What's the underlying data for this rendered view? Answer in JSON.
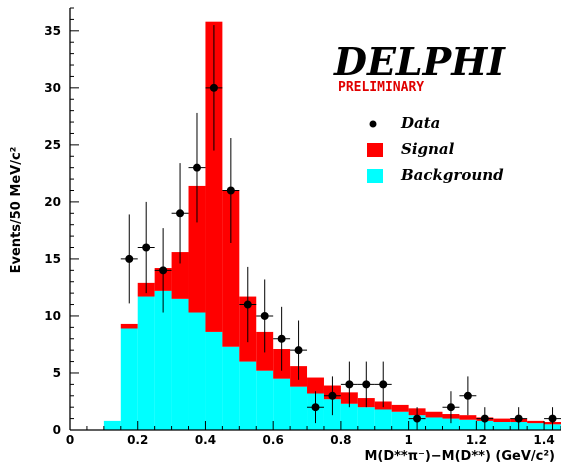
{
  "chart_data": {
    "type": "bar",
    "brand": "DELPHI",
    "subtitle": "PRELIMINARY",
    "xlabel": "M(D**π⁻)−M(D**) (GeV/c²)",
    "ylabel": "Events/50 MeV/c²",
    "xlim": [
      0,
      1.45
    ],
    "ylim": [
      0,
      37
    ],
    "x_ticks": [
      0,
      0.2,
      0.4,
      0.6,
      0.8,
      1,
      1.2,
      1.4
    ],
    "x_tick_labels": [
      "0",
      "0.2",
      "0.4",
      "0.6",
      "0.8",
      "1",
      "1.2",
      "1.4"
    ],
    "y_ticks": [
      0,
      5,
      10,
      15,
      20,
      25,
      30,
      35
    ],
    "y_tick_labels": [
      "0",
      "5",
      "10",
      "15",
      "20",
      "25",
      "30",
      "35"
    ],
    "bin_width": 0.05,
    "bin_centers": [
      0.125,
      0.175,
      0.225,
      0.275,
      0.325,
      0.375,
      0.425,
      0.475,
      0.525,
      0.575,
      0.625,
      0.675,
      0.725,
      0.775,
      0.825,
      0.875,
      0.925,
      0.975,
      1.025,
      1.075,
      1.125,
      1.175,
      1.225,
      1.275,
      1.325,
      1.375,
      1.425
    ],
    "series": [
      {
        "name": "Background",
        "color": "#00ffff",
        "values": [
          0.8,
          8.9,
          11.7,
          12.2,
          11.5,
          10.3,
          8.6,
          7.3,
          6.0,
          5.2,
          4.5,
          3.8,
          3.2,
          2.7,
          2.3,
          2.0,
          1.8,
          1.6,
          1.3,
          1.1,
          1.0,
          0.9,
          0.8,
          0.7,
          0.7,
          0.6,
          0.5
        ]
      },
      {
        "name": "Signal",
        "color": "#ff0000",
        "values": [
          0,
          0.4,
          1.2,
          2.0,
          4.1,
          11.1,
          27.2,
          13.7,
          5.7,
          3.4,
          2.6,
          1.8,
          1.4,
          1.2,
          1.0,
          0.8,
          0.7,
          0.6,
          0.6,
          0.5,
          0.4,
          0.4,
          0.3,
          0.3,
          0.3,
          0.2,
          0.2
        ]
      }
    ],
    "data_points": {
      "name": "Data",
      "x": [
        0.175,
        0.225,
        0.275,
        0.325,
        0.375,
        0.425,
        0.475,
        0.525,
        0.575,
        0.625,
        0.675,
        0.725,
        0.775,
        0.825,
        0.875,
        0.925,
        1.025,
        1.125,
        1.175,
        1.225,
        1.325,
        1.425
      ],
      "y": [
        15,
        16,
        14,
        19,
        23,
        30,
        21,
        11,
        10,
        8,
        7,
        2,
        3,
        4,
        4,
        4,
        1,
        2,
        3,
        1,
        1,
        1
      ],
      "err": [
        3.9,
        4.0,
        3.7,
        4.4,
        4.8,
        5.5,
        4.6,
        3.3,
        3.2,
        2.8,
        2.6,
        1.4,
        1.7,
        2.0,
        2.0,
        2.0,
        1.0,
        1.4,
        1.7,
        1.0,
        1.0,
        1.0
      ]
    },
    "legend": [
      {
        "label": "Data",
        "kind": "marker",
        "color": "#000000"
      },
      {
        "label": "Signal",
        "kind": "box",
        "color": "#ff0000"
      },
      {
        "label": "Background",
        "kind": "box",
        "color": "#00ffff"
      }
    ],
    "legend_position": "top-right",
    "grid": false
  }
}
